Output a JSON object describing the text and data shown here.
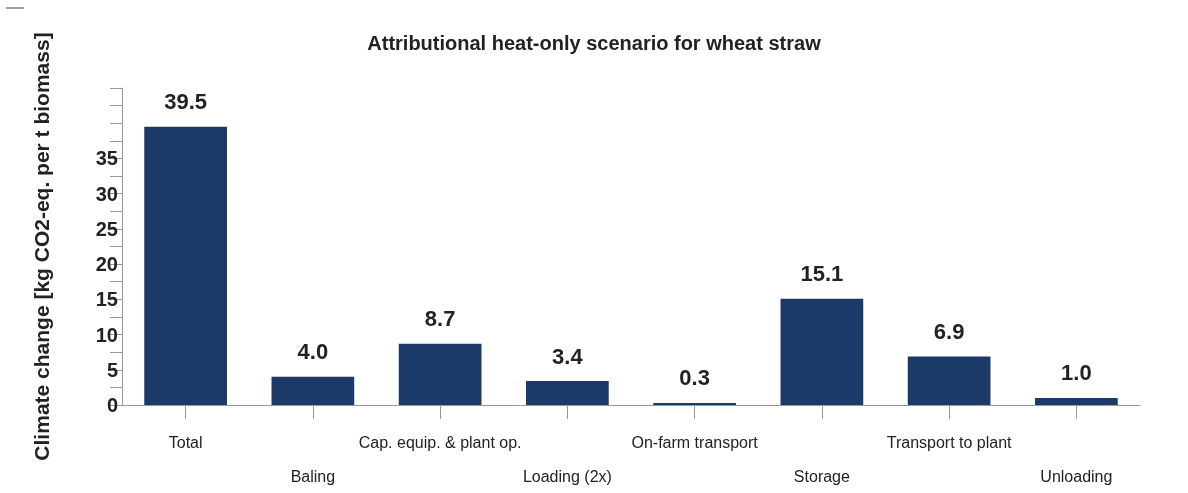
{
  "chart_data": {
    "type": "bar",
    "title": "Attributional heat-only scenario for wheat straw",
    "ylabel": "Climate change [kg CO2-eq. per t biomass]",
    "categories": [
      "Total",
      "Baling",
      "Cap. equip. & plant op.",
      "Loading (2x)",
      "On-farm transport",
      "Storage",
      "Transport to plant",
      "Unloading"
    ],
    "values": [
      39.5,
      4.0,
      8.7,
      3.4,
      0.3,
      15.1,
      6.9,
      1.0
    ],
    "color": "#1b3a67",
    "value_labels": [
      "39.5",
      "4.0",
      "8.7",
      "3.4",
      "0.3",
      "15.1",
      "6.9",
      "1.0"
    ],
    "ylim": [
      0,
      45
    ],
    "yticks": [
      0,
      {
        "value": 2.5,
        "label": null
      },
      5,
      {
        "value": 7.5,
        "label": null
      },
      10,
      {
        "value": 12.5,
        "label": null
      },
      15,
      {
        "value": 17.5,
        "label": null
      },
      20,
      {
        "value": 22.5,
        "label": null
      },
      25,
      {
        "value": 27.5,
        "label": null
      },
      30,
      {
        "value": 32.5,
        "label": null
      },
      35,
      {
        "value": 37.5,
        "label": null
      },
      {
        "value": 40,
        "label": null
      },
      {
        "value": 42.5,
        "label": null
      },
      {
        "value": 45,
        "label": null
      }
    ],
    "grid": false
  }
}
